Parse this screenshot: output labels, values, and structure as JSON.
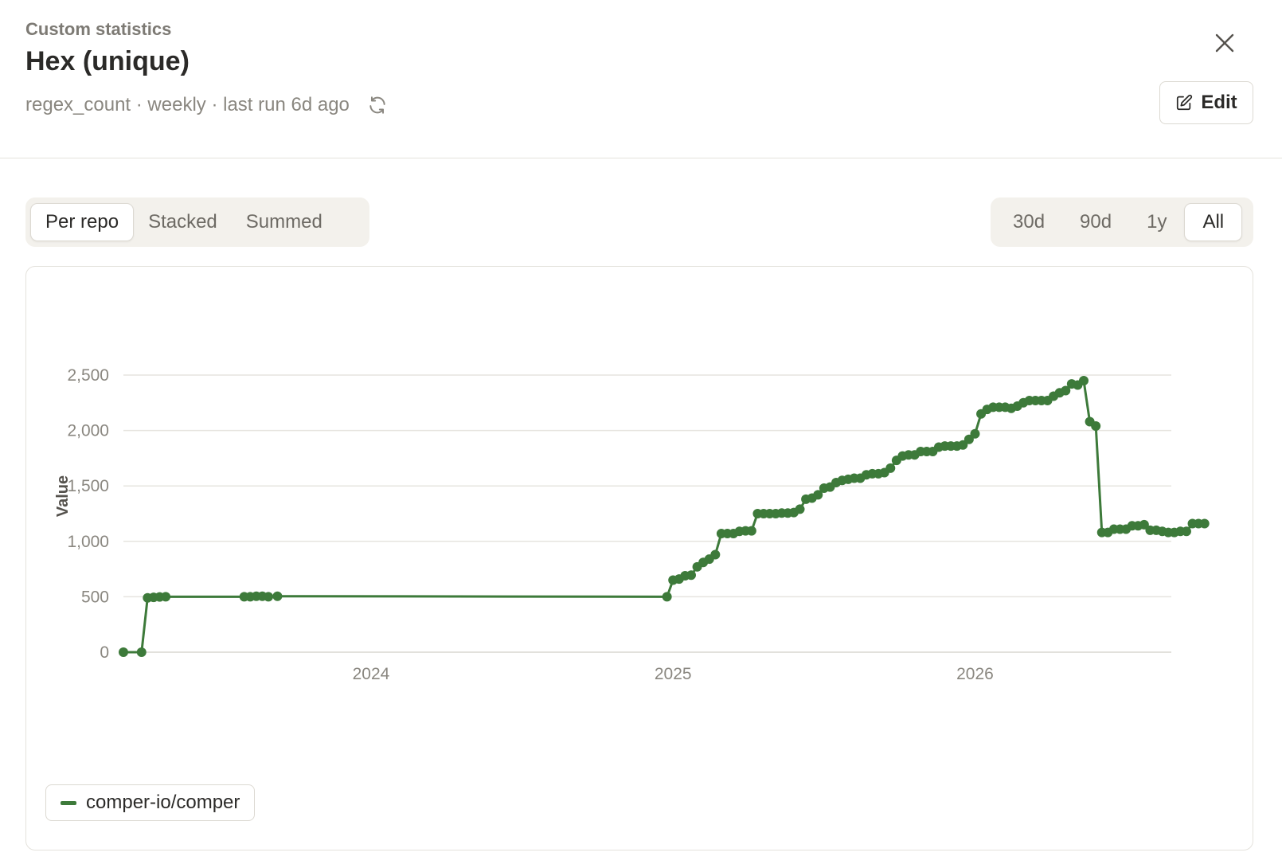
{
  "header": {
    "eyebrow": "Custom statistics",
    "title": "Hex (unique)",
    "meta": "regex_count · weekly · last run 6d ago",
    "edit_label": "Edit"
  },
  "view_modes": [
    {
      "label": "Per repo",
      "active": true
    },
    {
      "label": "Stacked",
      "active": false
    },
    {
      "label": "Summed",
      "active": false
    }
  ],
  "ranges": [
    {
      "label": "30d",
      "active": false
    },
    {
      "label": "90d",
      "active": false
    },
    {
      "label": "1y",
      "active": false
    },
    {
      "label": "All",
      "active": true
    }
  ],
  "icons": {
    "close": "close-icon",
    "edit": "pencil-icon",
    "refresh": "refresh-icon"
  },
  "colors": {
    "series": "#3d7a3a",
    "grid": "#e6e4df",
    "tick": "#8a8780"
  },
  "chart_data": {
    "type": "line",
    "ylabel": "Value",
    "xlabel": "",
    "ylim": [
      0,
      2500
    ],
    "yticks": [
      0,
      500,
      1000,
      1500,
      2000,
      2500
    ],
    "ytick_labels": [
      "0",
      "500",
      "1,000",
      "1,500",
      "2,000",
      "2,500"
    ],
    "xlim": [
      2023.18,
      2026.65
    ],
    "xticks": [
      2024,
      2025,
      2026
    ],
    "xtick_labels": [
      "2024",
      "2025",
      "2026"
    ],
    "grid": true,
    "legend_position": "bottom-left",
    "series": [
      {
        "name": "comper-io/comper",
        "points": [
          [
            2023.18,
            0
          ],
          [
            2023.24,
            0
          ],
          [
            2023.26,
            490
          ],
          [
            2023.28,
            495
          ],
          [
            2023.3,
            498
          ],
          [
            2023.32,
            500
          ],
          [
            2023.58,
            500
          ],
          [
            2023.6,
            500
          ],
          [
            2023.62,
            505
          ],
          [
            2023.64,
            505
          ],
          [
            2023.66,
            500
          ],
          [
            2023.69,
            505
          ],
          [
            2024.98,
            500
          ],
          [
            2025.0,
            650
          ],
          [
            2025.02,
            660
          ],
          [
            2025.04,
            690
          ],
          [
            2025.06,
            695
          ],
          [
            2025.08,
            770
          ],
          [
            2025.1,
            810
          ],
          [
            2025.12,
            840
          ],
          [
            2025.14,
            880
          ],
          [
            2025.16,
            1070
          ],
          [
            2025.18,
            1070
          ],
          [
            2025.2,
            1070
          ],
          [
            2025.22,
            1090
          ],
          [
            2025.24,
            1095
          ],
          [
            2025.26,
            1095
          ],
          [
            2025.28,
            1250
          ],
          [
            2025.3,
            1250
          ],
          [
            2025.32,
            1250
          ],
          [
            2025.34,
            1250
          ],
          [
            2025.36,
            1255
          ],
          [
            2025.38,
            1255
          ],
          [
            2025.4,
            1260
          ],
          [
            2025.42,
            1290
          ],
          [
            2025.44,
            1380
          ],
          [
            2025.46,
            1390
          ],
          [
            2025.48,
            1420
          ],
          [
            2025.5,
            1480
          ],
          [
            2025.52,
            1490
          ],
          [
            2025.54,
            1530
          ],
          [
            2025.56,
            1550
          ],
          [
            2025.58,
            1560
          ],
          [
            2025.6,
            1570
          ],
          [
            2025.62,
            1570
          ],
          [
            2025.64,
            1600
          ],
          [
            2025.66,
            1610
          ],
          [
            2025.68,
            1610
          ],
          [
            2025.7,
            1620
          ],
          [
            2025.72,
            1660
          ],
          [
            2025.74,
            1730
          ],
          [
            2025.76,
            1770
          ],
          [
            2025.78,
            1780
          ],
          [
            2025.8,
            1780
          ],
          [
            2025.82,
            1810
          ],
          [
            2025.84,
            1810
          ],
          [
            2025.86,
            1810
          ],
          [
            2025.88,
            1850
          ],
          [
            2025.9,
            1860
          ],
          [
            2025.92,
            1860
          ],
          [
            2025.94,
            1860
          ],
          [
            2025.96,
            1870
          ],
          [
            2025.98,
            1920
          ],
          [
            2026.0,
            1970
          ],
          [
            2026.02,
            2150
          ],
          [
            2026.04,
            2190
          ],
          [
            2026.06,
            2210
          ],
          [
            2026.08,
            2210
          ],
          [
            2026.1,
            2210
          ],
          [
            2026.12,
            2200
          ],
          [
            2026.14,
            2220
          ],
          [
            2026.16,
            2250
          ],
          [
            2026.18,
            2270
          ],
          [
            2026.2,
            2270
          ],
          [
            2026.22,
            2270
          ],
          [
            2026.24,
            2270
          ],
          [
            2026.26,
            2310
          ],
          [
            2026.28,
            2340
          ],
          [
            2026.3,
            2360
          ],
          [
            2026.32,
            2420
          ],
          [
            2026.34,
            2410
          ],
          [
            2026.36,
            2450
          ],
          [
            2026.38,
            2080
          ],
          [
            2026.4,
            2040
          ],
          [
            2026.42,
            1080
          ],
          [
            2026.44,
            1080
          ],
          [
            2026.46,
            1110
          ],
          [
            2026.48,
            1110
          ],
          [
            2026.5,
            1110
          ],
          [
            2026.52,
            1140
          ],
          [
            2026.54,
            1140
          ],
          [
            2026.56,
            1150
          ],
          [
            2026.58,
            1100
          ],
          [
            2026.6,
            1100
          ],
          [
            2026.62,
            1090
          ],
          [
            2026.64,
            1080
          ],
          [
            2026.66,
            1080
          ],
          [
            2026.68,
            1090
          ],
          [
            2026.7,
            1090
          ],
          [
            2026.72,
            1160
          ],
          [
            2026.74,
            1160
          ],
          [
            2026.76,
            1160
          ]
        ]
      }
    ]
  }
}
